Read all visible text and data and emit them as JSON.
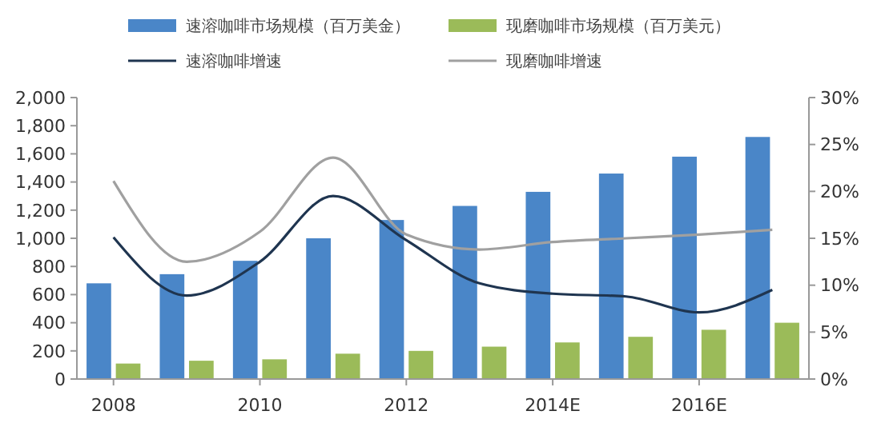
{
  "chart_data": {
    "type": "bar",
    "categories": [
      "2008",
      null,
      "2010",
      null,
      "2012",
      null,
      "2014E",
      null,
      "2016E",
      null
    ],
    "series": [
      {
        "name": "速溶咖啡市场规模（百万美金）",
        "color": "#4a86c8",
        "values": [
          680,
          745,
          840,
          1000,
          1130,
          1230,
          1330,
          1460,
          1580,
          1720
        ]
      },
      {
        "name": "现磨咖啡市场规模（百万美元）",
        "color": "#9bbb59",
        "values": [
          110,
          130,
          140,
          180,
          200,
          230,
          260,
          300,
          350,
          400
        ]
      },
      {
        "name": "速溶咖啡增速",
        "type": "line",
        "axis": "y2",
        "color": "#1f3550",
        "values": [
          15.1,
          8.9,
          12.5,
          19.5,
          14.8,
          10.2,
          9.1,
          8.8,
          7.1,
          9.5
        ]
      },
      {
        "name": "现磨咖啡增速",
        "type": "line",
        "axis": "y2",
        "color": "#a0a0a0",
        "values": [
          21.1,
          12.5,
          15.7,
          23.6,
          15.4,
          13.8,
          14.6,
          15.0,
          15.4,
          15.9
        ]
      }
    ],
    "ylim": [
      0,
      2000
    ],
    "yticks": [
      0,
      {
        "value": 200,
        "label": "200"
      },
      400,
      600,
      800,
      {
        "value": 1000,
        "label": "1,000"
      },
      {
        "value": 1200,
        "label": "1,200"
      },
      {
        "value": 1400,
        "label": "1,400"
      },
      {
        "value": 1600,
        "label": "1,600"
      },
      {
        "value": 1800,
        "label": "1,800"
      },
      {
        "value": 2000,
        "label": "2,000"
      }
    ],
    "y2lim": [
      0,
      30
    ],
    "y2ticks": [
      {
        "value": 0,
        "label": "0%"
      },
      {
        "value": 5,
        "label": "5%"
      },
      {
        "value": 10,
        "label": "10%"
      },
      {
        "value": 15,
        "label": "15%"
      },
      {
        "value": 20,
        "label": "20%"
      },
      {
        "value": 25,
        "label": "25%"
      },
      {
        "value": 30,
        "label": "30%"
      }
    ],
    "legend": "top",
    "grid": false,
    "marker": "none",
    "line_style": "solid"
  }
}
